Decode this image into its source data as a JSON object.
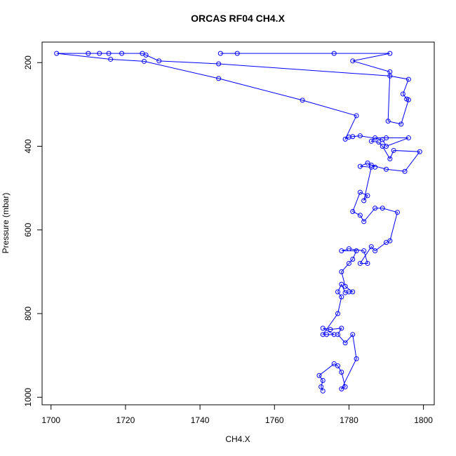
{
  "chart_data": {
    "type": "line",
    "title": "ORCAS RF04 CH4.X",
    "xlabel": "CH4.X",
    "ylabel": "Pressure (mbar)",
    "color": "#0000ff",
    "y_inverted": true,
    "markers": true,
    "xlim": [
      1697.6,
      1802.9
    ],
    "ylim": [
      151,
      1018
    ],
    "xticks": [
      1700,
      1720,
      1740,
      1760,
      1780,
      1800
    ],
    "yticks": [
      200,
      400,
      600,
      800,
      1000
    ],
    "x": [
      1773,
      1772.5,
      1773,
      1772,
      1776,
      1777,
      1778,
      1779,
      1778,
      1782,
      1781,
      1779,
      1777,
      1778,
      1775,
      1773,
      1776,
      1774,
      1773,
      1777,
      1778,
      1777,
      1778,
      1779,
      1780,
      1781,
      1779,
      1778,
      1780,
      1781,
      1782,
      1778,
      1780,
      1784,
      1785,
      1783,
      1786,
      1787,
      1790,
      1791,
      1793,
      1789,
      1787,
      1784,
      1783,
      1781,
      1783,
      1785,
      1784,
      1786,
      1783,
      1785,
      1787,
      1786,
      1790,
      1795,
      1799,
      1792,
      1791,
      1789,
      1788,
      1786,
      1787,
      1790,
      1796,
      1790,
      1789,
      1783,
      1781,
      1780,
      1779,
      1782,
      1767.5,
      1745,
      1725,
      1716,
      1701.5,
      1710,
      1713,
      1715.5,
      1719,
      1724.5,
      1725.5,
      1729,
      1745,
      1791,
      1796,
      1794.5,
      1795.5,
      1796,
      1794,
      1790.5,
      1791,
      1781,
      1791,
      1776,
      1750,
      1745.5
    ],
    "values": [
      985,
      975,
      960,
      948,
      920,
      925,
      940,
      975,
      980,
      908,
      850,
      870,
      850,
      835,
      838,
      835,
      850,
      850,
      850,
      800,
      760,
      748,
      730,
      750,
      748,
      748,
      735,
      700,
      680,
      670,
      650,
      650,
      645,
      650,
      680,
      680,
      640,
      650,
      630,
      626,
      558,
      548,
      548,
      580,
      565,
      556,
      510,
      518,
      530,
      450,
      448,
      440,
      450,
      445,
      455,
      460,
      413,
      410,
      430,
      400,
      390,
      388,
      380,
      380,
      380,
      400,
      384,
      375,
      377,
      378,
      383,
      327,
      290,
      238,
      197,
      192,
      178,
      178,
      178,
      178,
      178,
      178,
      182,
      196,
      203,
      232,
      240,
      275,
      287,
      289,
      347,
      340,
      222,
      196,
      178,
      178,
      178,
      178
    ]
  }
}
